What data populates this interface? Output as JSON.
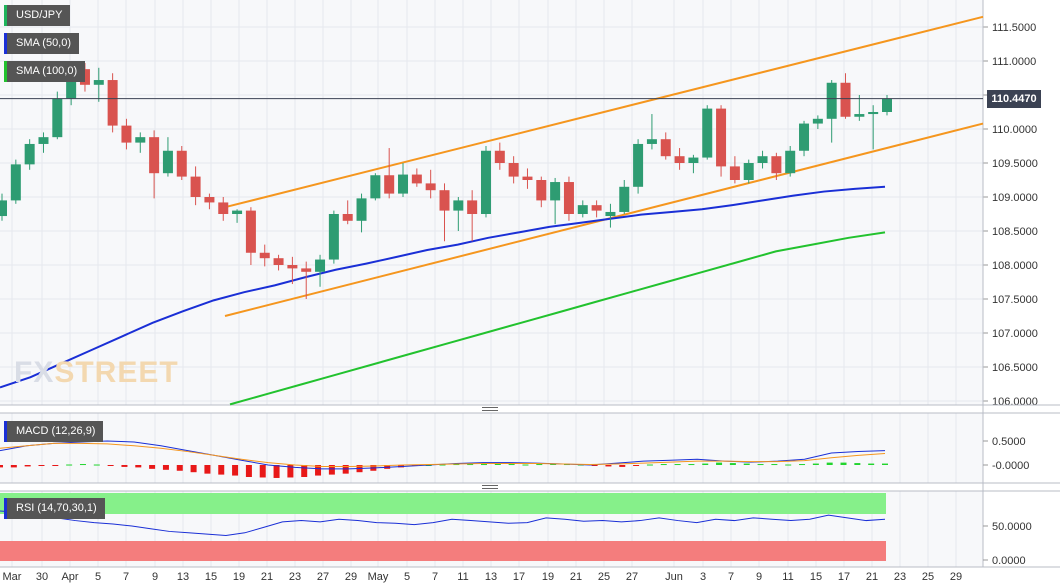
{
  "chart_data": {
    "type": "candlestick",
    "symbol": "USD/JPY",
    "indicators": [
      {
        "label": "SMA (50,0)",
        "color": "#1a2fd6"
      },
      {
        "label": "SMA (100,0)",
        "color": "#22c22e"
      }
    ],
    "current_price": "110.4470",
    "y_ticks": [
      "111.5000",
      "111.0000",
      "110.5000",
      "110.0000",
      "109.5000",
      "109.0000",
      "108.5000",
      "108.0000",
      "107.5000",
      "107.0000",
      "106.5000",
      "106.0000"
    ],
    "y_range": [
      106.0,
      111.5
    ],
    "x_ticks": [
      "Mar",
      "30",
      "Apr",
      "5",
      "7",
      "9",
      "13",
      "15",
      "19",
      "21",
      "23",
      "27",
      "29",
      "May",
      "5",
      "7",
      "11",
      "13",
      "17",
      "19",
      "21",
      "25",
      "27",
      "Jun",
      "3",
      "7",
      "9",
      "11",
      "15",
      "17",
      "21",
      "23",
      "25",
      "29"
    ],
    "candles": [
      {
        "o": 108.72,
        "h": 109.05,
        "l": 108.65,
        "c": 108.95
      },
      {
        "o": 108.95,
        "h": 109.55,
        "l": 108.9,
        "c": 109.48
      },
      {
        "o": 109.48,
        "h": 109.85,
        "l": 109.4,
        "c": 109.78
      },
      {
        "o": 109.78,
        "h": 109.95,
        "l": 109.65,
        "c": 109.88
      },
      {
        "o": 109.88,
        "h": 110.55,
        "l": 109.85,
        "c": 110.45
      },
      {
        "o": 110.45,
        "h": 110.95,
        "l": 110.35,
        "c": 110.88
      },
      {
        "o": 110.88,
        "h": 110.97,
        "l": 110.55,
        "c": 110.65
      },
      {
        "o": 110.65,
        "h": 110.9,
        "l": 110.4,
        "c": 110.72
      },
      {
        "o": 110.72,
        "h": 110.82,
        "l": 109.95,
        "c": 110.05
      },
      {
        "o": 110.05,
        "h": 110.15,
        "l": 109.7,
        "c": 109.8
      },
      {
        "o": 109.8,
        "h": 109.95,
        "l": 109.65,
        "c": 109.88
      },
      {
        "o": 109.88,
        "h": 109.98,
        "l": 108.98,
        "c": 109.35
      },
      {
        "o": 109.35,
        "h": 109.88,
        "l": 109.3,
        "c": 109.68
      },
      {
        "o": 109.68,
        "h": 109.75,
        "l": 109.25,
        "c": 109.3
      },
      {
        "o": 109.3,
        "h": 109.45,
        "l": 108.88,
        "c": 109.0
      },
      {
        "o": 109.0,
        "h": 109.05,
        "l": 108.82,
        "c": 108.92
      },
      {
        "o": 108.92,
        "h": 109.0,
        "l": 108.65,
        "c": 108.75
      },
      {
        "o": 108.75,
        "h": 108.82,
        "l": 108.62,
        "c": 108.8
      },
      {
        "o": 108.8,
        "h": 108.85,
        "l": 108.0,
        "c": 108.18
      },
      {
        "o": 108.18,
        "h": 108.3,
        "l": 107.98,
        "c": 108.1
      },
      {
        "o": 108.1,
        "h": 108.15,
        "l": 107.92,
        "c": 108.0
      },
      {
        "o": 108.0,
        "h": 108.12,
        "l": 107.72,
        "c": 107.95
      },
      {
        "o": 107.95,
        "h": 108.05,
        "l": 107.5,
        "c": 107.9
      },
      {
        "o": 107.9,
        "h": 108.15,
        "l": 107.68,
        "c": 108.08
      },
      {
        "o": 108.08,
        "h": 108.8,
        "l": 108.02,
        "c": 108.75
      },
      {
        "o": 108.75,
        "h": 108.95,
        "l": 108.6,
        "c": 108.65
      },
      {
        "o": 108.65,
        "h": 109.05,
        "l": 108.48,
        "c": 108.98
      },
      {
        "o": 108.98,
        "h": 109.35,
        "l": 108.95,
        "c": 109.32
      },
      {
        "o": 109.32,
        "h": 109.72,
        "l": 108.98,
        "c": 109.05
      },
      {
        "o": 109.05,
        "h": 109.5,
        "l": 109.0,
        "c": 109.33
      },
      {
        "o": 109.33,
        "h": 109.42,
        "l": 109.15,
        "c": 109.2
      },
      {
        "o": 109.2,
        "h": 109.4,
        "l": 108.98,
        "c": 109.1
      },
      {
        "o": 109.1,
        "h": 109.2,
        "l": 108.35,
        "c": 108.8
      },
      {
        "o": 108.8,
        "h": 109.0,
        "l": 108.5,
        "c": 108.95
      },
      {
        "o": 108.95,
        "h": 109.1,
        "l": 108.35,
        "c": 108.75
      },
      {
        "o": 108.75,
        "h": 109.75,
        "l": 108.7,
        "c": 109.68
      },
      {
        "o": 109.68,
        "h": 109.8,
        "l": 109.4,
        "c": 109.5
      },
      {
        "o": 109.5,
        "h": 109.6,
        "l": 109.2,
        "c": 109.3
      },
      {
        "o": 109.3,
        "h": 109.42,
        "l": 109.12,
        "c": 109.25
      },
      {
        "o": 109.25,
        "h": 109.3,
        "l": 108.85,
        "c": 108.95
      },
      {
        "o": 108.95,
        "h": 109.28,
        "l": 108.6,
        "c": 109.22
      },
      {
        "o": 109.22,
        "h": 109.3,
        "l": 108.65,
        "c": 108.75
      },
      {
        "o": 108.75,
        "h": 108.95,
        "l": 108.7,
        "c": 108.88
      },
      {
        "o": 108.88,
        "h": 108.95,
        "l": 108.7,
        "c": 108.8
      },
      {
        "o": 108.72,
        "h": 108.9,
        "l": 108.55,
        "c": 108.78
      },
      {
        "o": 108.78,
        "h": 109.25,
        "l": 108.75,
        "c": 109.15
      },
      {
        "o": 109.15,
        "h": 109.85,
        "l": 109.05,
        "c": 109.78
      },
      {
        "o": 109.78,
        "h": 110.22,
        "l": 109.7,
        "c": 109.85
      },
      {
        "o": 109.85,
        "h": 109.95,
        "l": 109.55,
        "c": 109.6
      },
      {
        "o": 109.6,
        "h": 109.72,
        "l": 109.4,
        "c": 109.5
      },
      {
        "o": 109.5,
        "h": 109.62,
        "l": 109.35,
        "c": 109.58
      },
      {
        "o": 109.58,
        "h": 110.35,
        "l": 109.55,
        "c": 110.3
      },
      {
        "o": 110.3,
        "h": 110.35,
        "l": 109.3,
        "c": 109.45
      },
      {
        "o": 109.45,
        "h": 109.6,
        "l": 109.2,
        "c": 109.25
      },
      {
        "o": 109.25,
        "h": 109.55,
        "l": 109.2,
        "c": 109.5
      },
      {
        "o": 109.5,
        "h": 109.68,
        "l": 109.42,
        "c": 109.6
      },
      {
        "o": 109.6,
        "h": 109.65,
        "l": 109.25,
        "c": 109.35
      },
      {
        "o": 109.35,
        "h": 109.75,
        "l": 109.3,
        "c": 109.68
      },
      {
        "o": 109.68,
        "h": 110.12,
        "l": 109.6,
        "c": 110.08
      },
      {
        "o": 110.08,
        "h": 110.2,
        "l": 110.0,
        "c": 110.15
      },
      {
        "o": 110.15,
        "h": 110.72,
        "l": 109.8,
        "c": 110.68
      },
      {
        "o": 110.68,
        "h": 110.82,
        "l": 110.15,
        "c": 110.18
      },
      {
        "o": 110.18,
        "h": 110.5,
        "l": 110.12,
        "c": 110.22
      },
      {
        "o": 110.22,
        "h": 110.35,
        "l": 109.7,
        "c": 110.25
      },
      {
        "o": 110.25,
        "h": 110.5,
        "l": 110.2,
        "c": 110.45
      }
    ],
    "sma50": [
      106.2,
      106.35,
      106.55,
      106.75,
      106.95,
      107.15,
      107.32,
      107.48,
      107.6,
      107.7,
      107.82,
      107.93,
      108.02,
      108.12,
      108.22,
      108.3,
      108.4,
      108.48,
      108.56,
      108.62,
      108.68,
      108.74,
      108.78,
      108.82,
      108.88,
      108.95,
      109.02,
      109.08,
      109.12,
      109.15
    ],
    "sma100": [
      105.95,
      106.1,
      106.25,
      106.4,
      106.55,
      106.7,
      106.85,
      107.0,
      107.15,
      107.3,
      107.45,
      107.6,
      107.75,
      107.9,
      108.05,
      108.2,
      108.3,
      108.4,
      108.48
    ],
    "macd": {
      "label": "MACD (12,26,9)",
      "y_ticks": [
        "0.5000",
        "-0.0000"
      ]
    },
    "rsi": {
      "label": "RSI (14,70,30,1)",
      "y_ticks": [
        "50.0000",
        "0.0000"
      ]
    },
    "watermark": "FXSTREET"
  }
}
